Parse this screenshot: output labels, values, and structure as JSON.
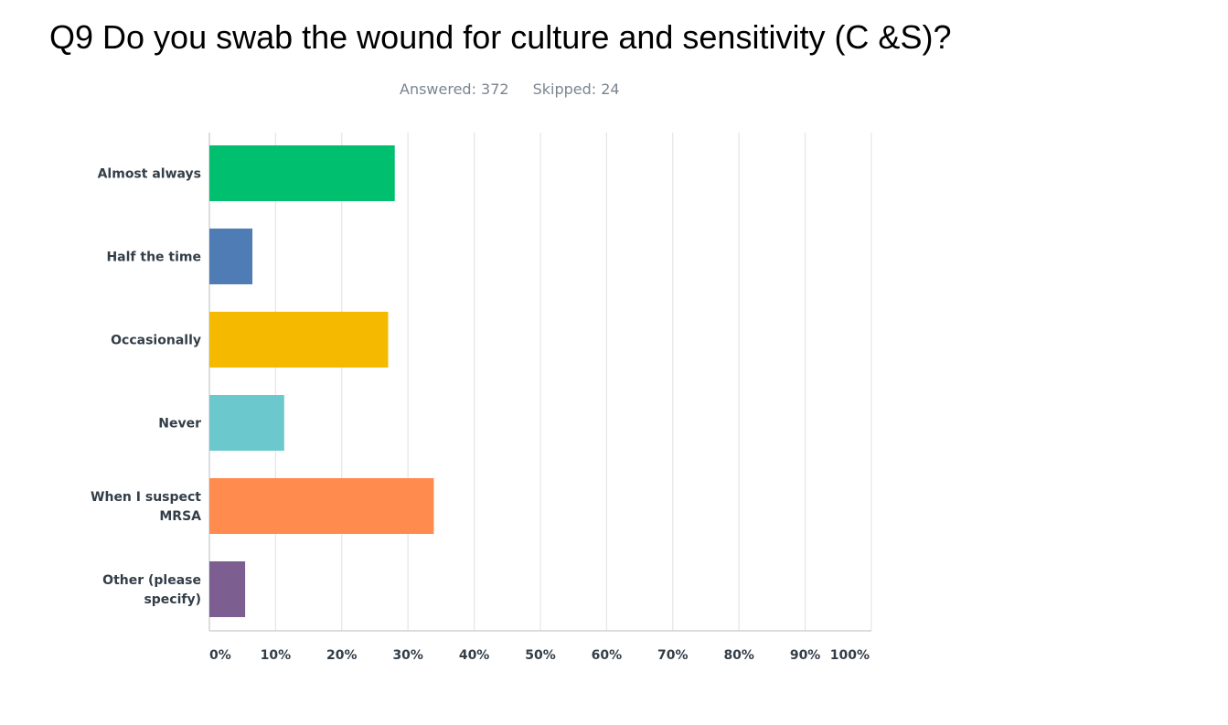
{
  "question": {
    "title": "Q9 Do you swab the wound for culture and sensitivity (C &S)?",
    "answered": "Answered: 372",
    "skipped": "Skipped: 24"
  },
  "chart_data": {
    "type": "bar",
    "orientation": "horizontal",
    "categories": [
      [
        "Almost always"
      ],
      [
        "Half the time"
      ],
      [
        "Occasionally"
      ],
      [
        "Never"
      ],
      [
        "When I suspect",
        "MRSA"
      ],
      [
        "Other (please",
        "specify)"
      ]
    ],
    "values": [
      28,
      6.5,
      27,
      11.3,
      33.9,
      5.4
    ],
    "colors": [
      "#00bf6f",
      "#507cb6",
      "#f5b900",
      "#6bc8cd",
      "#ff8b4f",
      "#7d5e90"
    ],
    "xticks": [
      "0%",
      "10%",
      "20%",
      "30%",
      "40%",
      "50%",
      "60%",
      "70%",
      "80%",
      "90%",
      "100%"
    ],
    "xlim": [
      0,
      100
    ],
    "grid": true
  }
}
